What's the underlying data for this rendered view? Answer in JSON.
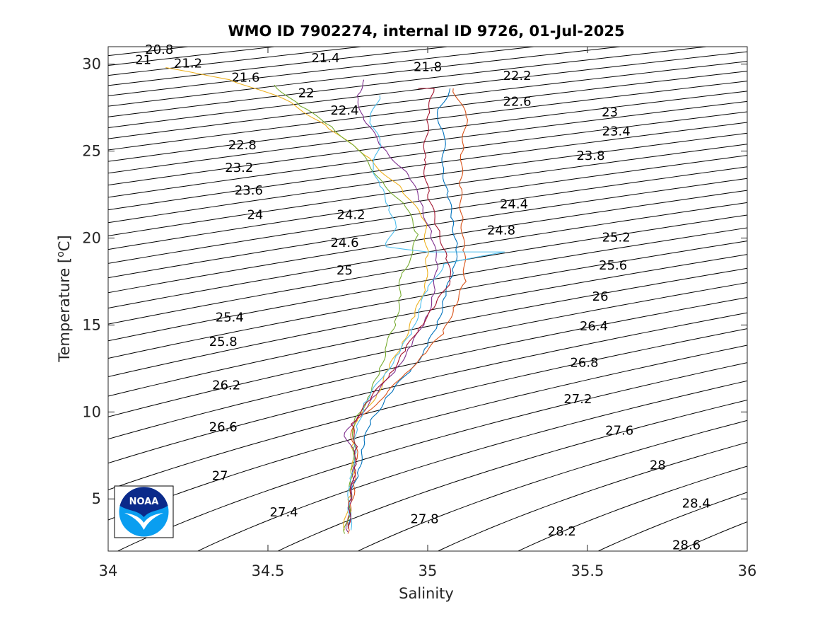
{
  "chart_data": {
    "type": "line",
    "title": "WMO ID 7902274, internal ID 9726, 01-Jul-2025",
    "xlabel": "Salinity",
    "ylabel_main": "Temperature [",
    "ylabel_sup": "o",
    "ylabel_end": "C]",
    "xlim": [
      34,
      36
    ],
    "ylim": [
      2,
      31
    ],
    "xticks": [
      34,
      34.5,
      35,
      35.5,
      36
    ],
    "xtick_labels": [
      "34",
      "34.5",
      "35",
      "35.5",
      "36"
    ],
    "yticks": [
      5,
      10,
      15,
      20,
      25,
      30
    ],
    "ytick_labels": [
      "5",
      "10",
      "15",
      "20",
      "25",
      "30"
    ],
    "grid": false,
    "logo_text": "NOAA",
    "density_contours": {
      "levels": [
        20.8,
        21.0,
        21.2,
        21.4,
        21.6,
        21.8,
        22.0,
        22.2,
        22.4,
        22.6,
        22.8,
        23.0,
        23.2,
        23.4,
        23.6,
        23.8,
        24.0,
        24.2,
        24.4,
        24.6,
        24.8,
        25.0,
        25.2,
        25.4,
        25.6,
        25.8,
        26.0,
        26.2,
        26.4,
        26.6,
        26.8,
        27.0,
        27.2,
        27.4,
        27.6,
        27.8,
        28.0,
        28.2,
        28.4,
        28.6
      ],
      "color": "#000000",
      "labels": [
        {
          "text": "20.8",
          "s": 34.16,
          "t": 30.8
        },
        {
          "text": "21",
          "s": 34.11,
          "t": 30.2
        },
        {
          "text": "21.2",
          "s": 34.25,
          "t": 30.0
        },
        {
          "text": "21.4",
          "s": 34.68,
          "t": 30.3
        },
        {
          "text": "21.6",
          "s": 34.43,
          "t": 29.2
        },
        {
          "text": "21.8",
          "s": 35.0,
          "t": 29.8
        },
        {
          "text": "22",
          "s": 34.62,
          "t": 28.3
        },
        {
          "text": "22.2",
          "s": 35.28,
          "t": 29.3
        },
        {
          "text": "22.4",
          "s": 34.74,
          "t": 27.3
        },
        {
          "text": "22.6",
          "s": 35.28,
          "t": 27.8
        },
        {
          "text": "22.8",
          "s": 34.42,
          "t": 25.3
        },
        {
          "text": "23",
          "s": 35.57,
          "t": 27.2
        },
        {
          "text": "23.2",
          "s": 34.41,
          "t": 24.0
        },
        {
          "text": "23.4",
          "s": 35.59,
          "t": 26.1
        },
        {
          "text": "23.6",
          "s": 34.44,
          "t": 22.7
        },
        {
          "text": "23.8",
          "s": 35.51,
          "t": 24.7
        },
        {
          "text": "24",
          "s": 34.46,
          "t": 21.3
        },
        {
          "text": "24.2",
          "s": 34.76,
          "t": 21.3
        },
        {
          "text": "24.4",
          "s": 35.27,
          "t": 21.9
        },
        {
          "text": "24.6",
          "s": 34.74,
          "t": 19.7
        },
        {
          "text": "24.8",
          "s": 35.23,
          "t": 20.4
        },
        {
          "text": "25",
          "s": 34.74,
          "t": 18.1
        },
        {
          "text": "25.2",
          "s": 35.59,
          "t": 20.0
        },
        {
          "text": "25.4",
          "s": 34.38,
          "t": 15.4
        },
        {
          "text": "25.6",
          "s": 35.58,
          "t": 18.4
        },
        {
          "text": "25.8",
          "s": 34.36,
          "t": 14.0
        },
        {
          "text": "26",
          "s": 35.54,
          "t": 16.6
        },
        {
          "text": "26.2",
          "s": 34.37,
          "t": 11.5
        },
        {
          "text": "26.4",
          "s": 35.52,
          "t": 14.9
        },
        {
          "text": "26.6",
          "s": 34.36,
          "t": 9.1
        },
        {
          "text": "26.8",
          "s": 35.49,
          "t": 12.8
        },
        {
          "text": "27",
          "s": 34.35,
          "t": 6.3
        },
        {
          "text": "27.2",
          "s": 35.47,
          "t": 10.7
        },
        {
          "text": "27.4",
          "s": 34.55,
          "t": 4.2
        },
        {
          "text": "27.6",
          "s": 35.6,
          "t": 8.9
        },
        {
          "text": "27.8",
          "s": 34.99,
          "t": 3.8
        },
        {
          "text": "28",
          "s": 35.72,
          "t": 6.9
        },
        {
          "text": "28.2",
          "s": 35.42,
          "t": 3.1
        },
        {
          "text": "28.4",
          "s": 35.84,
          "t": 4.7
        },
        {
          "text": "28.6",
          "s": 35.81,
          "t": 2.3
        }
      ]
    },
    "series": [
      {
        "color": "#0072bd",
        "points": [
          [
            35.07,
            28.6
          ],
          [
            35.03,
            27.2
          ],
          [
            35.05,
            26.0
          ],
          [
            35.05,
            24.0
          ],
          [
            35.06,
            22.5
          ],
          [
            35.08,
            21.0
          ],
          [
            35.09,
            19.5
          ],
          [
            35.08,
            18.0
          ],
          [
            35.05,
            16.5
          ],
          [
            35.03,
            15.0
          ],
          [
            35.0,
            13.8
          ],
          [
            34.95,
            12.5
          ],
          [
            34.88,
            11.0
          ],
          [
            34.82,
            9.5
          ],
          [
            34.8,
            8.0
          ],
          [
            34.78,
            6.5
          ],
          [
            34.76,
            5.0
          ],
          [
            34.75,
            3.4
          ]
        ]
      },
      {
        "color": "#d95319",
        "points": [
          [
            35.08,
            28.6
          ],
          [
            35.12,
            27.0
          ],
          [
            35.11,
            25.0
          ],
          [
            35.1,
            23.0
          ],
          [
            35.11,
            21.0
          ],
          [
            35.11,
            19.3
          ],
          [
            35.12,
            17.5
          ],
          [
            35.08,
            16.0
          ],
          [
            35.05,
            14.5
          ],
          [
            34.98,
            13.2
          ],
          [
            34.92,
            12.0
          ],
          [
            34.86,
            10.8
          ],
          [
            34.78,
            9.6
          ],
          [
            34.76,
            8.5
          ],
          [
            34.78,
            7.5
          ],
          [
            34.77,
            6.0
          ],
          [
            34.76,
            4.5
          ],
          [
            34.75,
            3.0
          ]
        ]
      },
      {
        "color": "#edb120",
        "points": [
          [
            34.18,
            29.8
          ],
          [
            34.38,
            29.1
          ],
          [
            34.55,
            28.0
          ],
          [
            34.68,
            26.5
          ],
          [
            34.8,
            24.8
          ],
          [
            34.92,
            22.8
          ],
          [
            34.99,
            21.0
          ],
          [
            35.0,
            19.0
          ],
          [
            34.99,
            17.2
          ],
          [
            34.96,
            15.5
          ],
          [
            34.92,
            14.0
          ],
          [
            34.88,
            12.5
          ],
          [
            34.84,
            11.0
          ],
          [
            34.78,
            9.5
          ],
          [
            34.76,
            8.0
          ],
          [
            34.77,
            6.5
          ],
          [
            34.75,
            5.0
          ],
          [
            34.74,
            3.2
          ]
        ]
      },
      {
        "color": "#7e2f8e",
        "points": [
          [
            34.8,
            29.1
          ],
          [
            34.78,
            28.2
          ],
          [
            34.8,
            26.8
          ],
          [
            34.86,
            25.2
          ],
          [
            34.94,
            23.6
          ],
          [
            34.98,
            22.0
          ],
          [
            35.01,
            20.2
          ],
          [
            35.03,
            18.5
          ],
          [
            35.02,
            16.8
          ],
          [
            34.99,
            15.2
          ],
          [
            34.95,
            13.8
          ],
          [
            34.9,
            12.5
          ],
          [
            34.84,
            11.0
          ],
          [
            34.78,
            9.7
          ],
          [
            34.74,
            8.8
          ],
          [
            34.77,
            7.5
          ],
          [
            34.77,
            6.0
          ],
          [
            34.75,
            4.5
          ],
          [
            34.75,
            3.1
          ]
        ]
      },
      {
        "color": "#77ac30",
        "points": [
          [
            34.52,
            28.8
          ],
          [
            34.6,
            27.6
          ],
          [
            34.7,
            26.4
          ],
          [
            34.78,
            25.1
          ],
          [
            34.86,
            23.2
          ],
          [
            34.93,
            21.8
          ],
          [
            34.97,
            20.2
          ],
          [
            34.95,
            19.0
          ],
          [
            34.92,
            18.0
          ],
          [
            34.91,
            16.5
          ],
          [
            34.9,
            15.0
          ],
          [
            34.87,
            13.8
          ],
          [
            34.85,
            12.3
          ],
          [
            34.82,
            11.0
          ],
          [
            34.77,
            9.5
          ],
          [
            34.77,
            8.0
          ],
          [
            34.76,
            6.5
          ],
          [
            34.76,
            5.0
          ],
          [
            34.74,
            3.0
          ]
        ]
      },
      {
        "color": "#4dbeee",
        "points": [
          [
            34.85,
            28.2
          ],
          [
            34.82,
            26.8
          ],
          [
            34.85,
            25.5
          ],
          [
            34.83,
            24.0
          ],
          [
            34.85,
            23.0
          ],
          [
            34.88,
            21.8
          ],
          [
            34.9,
            20.8
          ],
          [
            34.87,
            19.5
          ],
          [
            35.0,
            19.2
          ],
          [
            35.24,
            19.2
          ],
          [
            35.05,
            18.5
          ],
          [
            35.0,
            17.0
          ],
          [
            34.97,
            15.8
          ],
          [
            34.95,
            14.5
          ],
          [
            34.9,
            13.2
          ],
          [
            34.86,
            12.0
          ],
          [
            34.8,
            10.5
          ],
          [
            34.78,
            9.0
          ],
          [
            34.77,
            7.5
          ],
          [
            34.76,
            6.0
          ],
          [
            34.75,
            4.5
          ],
          [
            34.76,
            3.2
          ]
        ]
      },
      {
        "color": "#a2142f",
        "points": [
          [
            34.97,
            28.6
          ],
          [
            35.02,
            28.6
          ],
          [
            35.0,
            27.0
          ],
          [
            34.99,
            24.5
          ],
          [
            35.0,
            22.5
          ],
          [
            35.03,
            20.6
          ],
          [
            35.06,
            19.0
          ],
          [
            35.07,
            17.5
          ],
          [
            35.02,
            16.0
          ],
          [
            34.97,
            14.8
          ],
          [
            34.93,
            13.5
          ],
          [
            34.88,
            12.2
          ],
          [
            34.82,
            10.7
          ],
          [
            34.76,
            9.3
          ],
          [
            34.78,
            8.0
          ],
          [
            34.77,
            6.8
          ],
          [
            34.76,
            5.0
          ],
          [
            34.75,
            3.3
          ]
        ]
      }
    ]
  }
}
